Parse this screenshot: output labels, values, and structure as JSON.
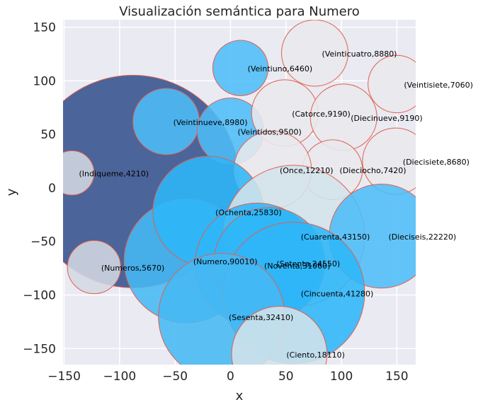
{
  "chart_data": {
    "type": "scatter",
    "title": "Visualización semántica para Numero",
    "xlabel": "x",
    "ylabel": "y",
    "xlim": [
      -151,
      167
    ],
    "ylim": [
      -165,
      157
    ],
    "xticks": [
      -150,
      -100,
      -50,
      0,
      50,
      100,
      150
    ],
    "yticks": [
      -150,
      -100,
      -50,
      0,
      50,
      100,
      150
    ],
    "xtick_labels": [
      "−150",
      "−100",
      "−50",
      "0",
      "50",
      "100",
      "150"
    ],
    "ytick_labels": [
      "−150",
      "−100",
      "−50",
      "0",
      "50",
      "100",
      "150"
    ],
    "grid": true,
    "edge_color": "#e06050",
    "points": [
      {
        "label": "(Indiqueme,4210)",
        "x": -88,
        "y": 6,
        "r": 96,
        "color": "#3d5891"
      },
      {
        "label": "(Numeros,5670)",
        "x": -123,
        "y": -74,
        "r": 24,
        "color": "#d3d8e2"
      },
      {
        "label": "(Indiqueme,4210)",
        "x": -143,
        "y": 14,
        "r": 20,
        "color": "#d3d8e2",
        "skip": true
      },
      {
        "label": "(Veintinueve,8980)",
        "x": -58,
        "y": 62,
        "r": 30,
        "color": "#4dbdf7"
      },
      {
        "label": "(Veintidos,9500)",
        "x": 0,
        "y": 53,
        "r": 30,
        "color": "#4dbdf7"
      },
      {
        "label": "(Veintiuno,6460)",
        "x": 9,
        "y": 112,
        "r": 25,
        "color": "#4dbdf7"
      },
      {
        "label": "(Catorce,9190)",
        "x": 49,
        "y": 70,
        "r": 30,
        "color": "#e8e8ed"
      },
      {
        "label": "(Veinticuatro,8880)",
        "x": 76,
        "y": 126,
        "r": 30,
        "color": "#e8e8ed"
      },
      {
        "label": "(Veintisiete,7060)",
        "x": 150,
        "y": 97,
        "r": 26,
        "color": "#e8e8ed"
      },
      {
        "label": "(Diecinueve,9190)",
        "x": 102,
        "y": 66,
        "r": 30,
        "color": "#e8e8ed"
      },
      {
        "label": "(Diecisiete,8680)",
        "x": 149,
        "y": 25,
        "r": 30,
        "color": "#e8e8ed"
      },
      {
        "label": "(Dieciocho,7420)",
        "x": 92,
        "y": 17,
        "r": 27,
        "color": "#e8e8ed"
      },
      {
        "label": "(Once,12210)",
        "x": 38,
        "y": 17,
        "r": 35,
        "color": "#e8e8ed"
      },
      {
        "label": "(Numero,90010)",
        "x": -40,
        "y": -68,
        "r": 56,
        "color": "#45b8f3"
      },
      {
        "label": "(Ochenta,25830)",
        "x": -20,
        "y": -22,
        "r": 50,
        "color": "#2eb6f8"
      },
      {
        "label": "(Cuarenta,43150)",
        "x": 57,
        "y": -45,
        "r": 64,
        "color": "#d3e2ea"
      },
      {
        "label": "(Dieciseis,22220)",
        "x": 136,
        "y": -45,
        "r": 47,
        "color": "#4dbdf7"
      },
      {
        "label": "(Noventa,31060)",
        "x": 24,
        "y": -72,
        "r": 56,
        "color": "#2eb6f8"
      },
      {
        "label": "(Setenta,24550)",
        "x": 35,
        "y": -70,
        "r": 50,
        "color": "#2eb6f8"
      },
      {
        "label": "(Cincuenta,41280)",
        "x": 57,
        "y": -98,
        "r": 64,
        "color": "#2eb6f8"
      },
      {
        "label": "(Sesenta,32410)",
        "x": -8,
        "y": -120,
        "r": 57,
        "color": "#45b8f3"
      },
      {
        "label": "(Ciento,18110)",
        "x": 44,
        "y": -155,
        "r": 43,
        "color": "#d3e2ea"
      }
    ]
  }
}
